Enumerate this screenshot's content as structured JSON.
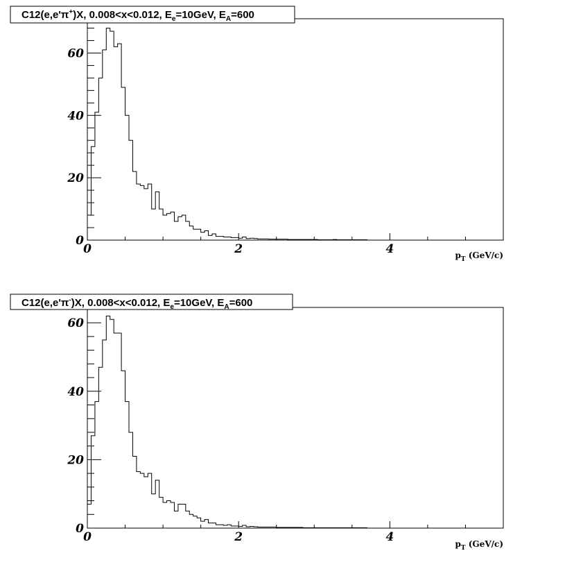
{
  "chart_data": [
    {
      "type": "bar",
      "title_parts": {
        "pre": "C12(e,e'π",
        "sup": "+",
        "mid": ")X, 0.008<x<0.012, E",
        "e_sub": "e",
        "mid2": "=10GeV, E",
        "a_sub": "A",
        "post": "=600"
      },
      "xlabel": {
        "main": "p",
        "sub": "T",
        "unit": " (GeV/c)"
      },
      "xlim": [
        0,
        5.5
      ],
      "ylim": [
        0,
        71
      ],
      "x_ticks": [
        "0",
        "2",
        "4"
      ],
      "y_ticks": [
        "0",
        "20",
        "40",
        "60"
      ],
      "bin_width": 0.05,
      "values": [
        8,
        30,
        41,
        52,
        61,
        68,
        67,
        62,
        63,
        49,
        40,
        32,
        22,
        18,
        17.5,
        16.5,
        18,
        10,
        15.5,
        10,
        8,
        8.5,
        9,
        6,
        7.5,
        8,
        6,
        4.5,
        3.5,
        3.5,
        2.5,
        3,
        1.5,
        2,
        1.2,
        1.2,
        1,
        1,
        0.8,
        0.8,
        0.6,
        1,
        0.5,
        0.6,
        0.5,
        0.4,
        0.4,
        0.4,
        0.3,
        0.3,
        0.3,
        0.3,
        0.3,
        0.2,
        0.2,
        0.2,
        0.2,
        0.2,
        0.2,
        0.2,
        0.2,
        0.1,
        0.1,
        0.1,
        0.1,
        0.2,
        0.1,
        0.1,
        0.1,
        0.1,
        0.1,
        0.1,
        0.1,
        0.1
      ]
    },
    {
      "type": "bar",
      "title_parts": {
        "pre": "C12(e,e'π",
        "sup": "-",
        "mid": ")X, 0.008<x<0.012, E",
        "e_sub": "e",
        "mid2": "=10GeV, E",
        "a_sub": "A",
        "post": "=600"
      },
      "xlabel": {
        "main": "p",
        "sub": "T",
        "unit": " (GeV/c)"
      },
      "xlim": [
        0,
        5.5
      ],
      "ylim": [
        0,
        64.5
      ],
      "x_ticks": [
        "0",
        "2",
        "4"
      ],
      "y_ticks": [
        "0",
        "20",
        "40",
        "60"
      ],
      "bin_width": 0.05,
      "values": [
        7,
        27,
        37,
        47,
        55,
        62,
        61,
        57,
        57,
        46,
        37,
        28,
        21,
        16.5,
        16,
        15,
        16,
        10,
        14,
        9,
        7.5,
        8,
        7.5,
        5,
        7,
        7,
        5,
        4,
        3.5,
        3,
        2,
        2.5,
        1.5,
        1.5,
        1,
        1,
        0.8,
        1,
        0.6,
        0.6,
        0.5,
        0.8,
        0.4,
        0.5,
        0.4,
        0.3,
        0.3,
        0.3,
        0.3,
        0.3,
        0.2,
        0.2,
        0.2,
        0.2,
        0.2,
        0.2,
        0.2,
        0.1,
        0.1,
        0.1,
        0.1,
        0.1,
        0.1,
        0.1,
        0.1,
        0.1,
        0.1,
        0.1,
        0.1,
        0.1,
        0.1,
        0.1,
        0.1,
        0.1
      ]
    }
  ]
}
